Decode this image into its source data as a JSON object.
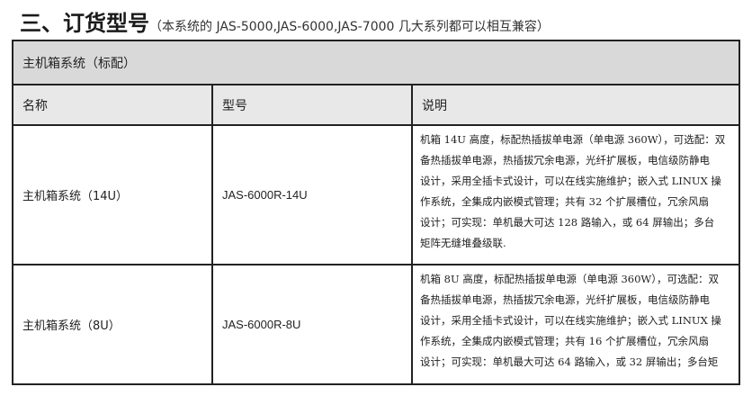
{
  "heading": {
    "title": "三、订货型号",
    "subtitle": "（本系统的 JAS-5000,JAS-6000,JAS-7000 几大系列都可以相互兼容）"
  },
  "table": {
    "group_title": "主机箱系统（标配）",
    "columns": [
      "名称",
      "型号",
      "说明"
    ],
    "rows": [
      {
        "name": "主机箱系统（14U）",
        "model": "JAS-6000R-14U",
        "description": [
          "机箱 14U 高度，标配热插拔单电源（单电源 360W），可选配：双",
          "备热插拔单电源，热插拔冗余电源，光纤扩展板，电信级防静电",
          "设计，采用全插卡式设计，可以在线实施维护；嵌入式 LINUX 操",
          "作系统，全集成内嵌模式管理；共有 32 个扩展槽位，冗余风扇",
          "设计；可实现：单机最大可达 128 路输入，或 64 屏输出；多台",
          "矩阵无缝堆叠级联."
        ]
      },
      {
        "name": "主机箱系统（8U）",
        "model": "JAS-6000R-8U",
        "description": [
          "机箱 8U 高度，标配热插拔单电源（单电源 360W），可选配：双",
          "备热插拔单电源，热插拔冗余电源，光纤扩展板，电信级防静电",
          "设计，采用全插卡式设计，可以在线实施维护；嵌入式 LINUX 操",
          "作系统，全集成内嵌模式管理；共有 16 个扩展槽位，冗余风扇",
          "设计；可实现：单机最大可达 64 路输入，或 32 屏输出；多台矩"
        ]
      }
    ]
  }
}
